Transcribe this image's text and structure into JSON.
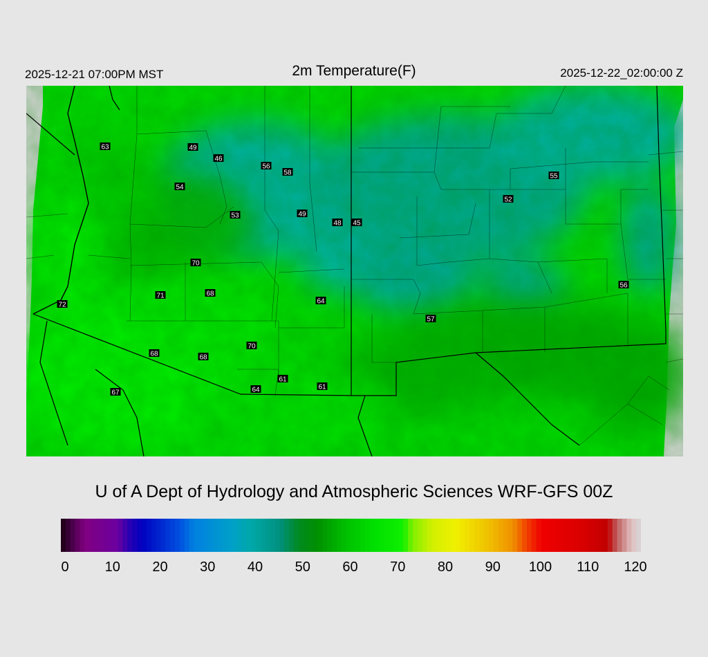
{
  "header": {
    "local_time": "2025-12-21 07:00PM MST",
    "title": "2m Temperature(F)",
    "valid_time": "2025-12-22_02:00:00 Z"
  },
  "credit": "U of A Dept of Hydrology and Atmospheric Sciences WRF-GFS 00Z",
  "stations": [
    {
      "id": "s1",
      "label": "63"
    },
    {
      "id": "s2",
      "label": "49"
    },
    {
      "id": "s3",
      "label": "46"
    },
    {
      "id": "s4",
      "label": "56"
    },
    {
      "id": "s5",
      "label": "58"
    },
    {
      "id": "s6",
      "label": "54"
    },
    {
      "id": "s7",
      "label": "53"
    },
    {
      "id": "s8",
      "label": "49"
    },
    {
      "id": "s9",
      "label": "48"
    },
    {
      "id": "s10",
      "label": "45"
    },
    {
      "id": "s11",
      "label": "55"
    },
    {
      "id": "s12",
      "label": "52"
    },
    {
      "id": "s13",
      "label": "70"
    },
    {
      "id": "s14",
      "label": "72"
    },
    {
      "id": "s15",
      "label": "71"
    },
    {
      "id": "s16",
      "label": "68"
    },
    {
      "id": "s17",
      "label": "64"
    },
    {
      "id": "s18",
      "label": "56"
    },
    {
      "id": "s19",
      "label": "57"
    },
    {
      "id": "s20",
      "label": "68"
    },
    {
      "id": "s21",
      "label": "68"
    },
    {
      "id": "s22",
      "label": "70"
    },
    {
      "id": "s23",
      "label": "61"
    },
    {
      "id": "s24",
      "label": "64"
    },
    {
      "id": "s25",
      "label": "61"
    },
    {
      "id": "s26",
      "label": "67"
    }
  ],
  "colorbar": {
    "ticks": [
      "0",
      "10",
      "20",
      "30",
      "40",
      "50",
      "60",
      "70",
      "80",
      "90",
      "100",
      "110",
      "120"
    ],
    "min": 0,
    "max": 122,
    "stops": [
      {
        "v": 0,
        "c": "#1a0010"
      },
      {
        "v": 2,
        "c": "#400040"
      },
      {
        "v": 4,
        "c": "#6a006a"
      },
      {
        "v": 5,
        "c": "#800080"
      },
      {
        "v": 12,
        "c": "#6b00a0"
      },
      {
        "v": 14,
        "c": "#3000b0"
      },
      {
        "v": 17,
        "c": "#0000c0"
      },
      {
        "v": 25,
        "c": "#0050e0"
      },
      {
        "v": 28,
        "c": "#0080e0"
      },
      {
        "v": 36,
        "c": "#00a0c8"
      },
      {
        "v": 40,
        "c": "#00a8a8"
      },
      {
        "v": 46,
        "c": "#009080"
      },
      {
        "v": 50,
        "c": "#008a20"
      },
      {
        "v": 54,
        "c": "#009000"
      },
      {
        "v": 60,
        "c": "#00c000"
      },
      {
        "v": 66,
        "c": "#00e000"
      },
      {
        "v": 72,
        "c": "#10f000"
      },
      {
        "v": 74,
        "c": "#80f000"
      },
      {
        "v": 78,
        "c": "#d0f000"
      },
      {
        "v": 83,
        "c": "#f0f000"
      },
      {
        "v": 90,
        "c": "#f0c000"
      },
      {
        "v": 95,
        "c": "#f09000"
      },
      {
        "v": 98,
        "c": "#f04000"
      },
      {
        "v": 101,
        "c": "#f00000"
      },
      {
        "v": 110,
        "c": "#d80000"
      },
      {
        "v": 115,
        "c": "#c00000"
      },
      {
        "v": 117,
        "c": "#c06060"
      },
      {
        "v": 120,
        "c": "#e0c0c0"
      },
      {
        "v": 122,
        "c": "#d8d8d8"
      }
    ]
  },
  "colors": {
    "background": "#e6e6e6",
    "land_green": "#00e000",
    "dark_green": "#00a800",
    "teal": "#00b8a0",
    "no_data": "#d4d4d4",
    "borders": "#000000"
  }
}
